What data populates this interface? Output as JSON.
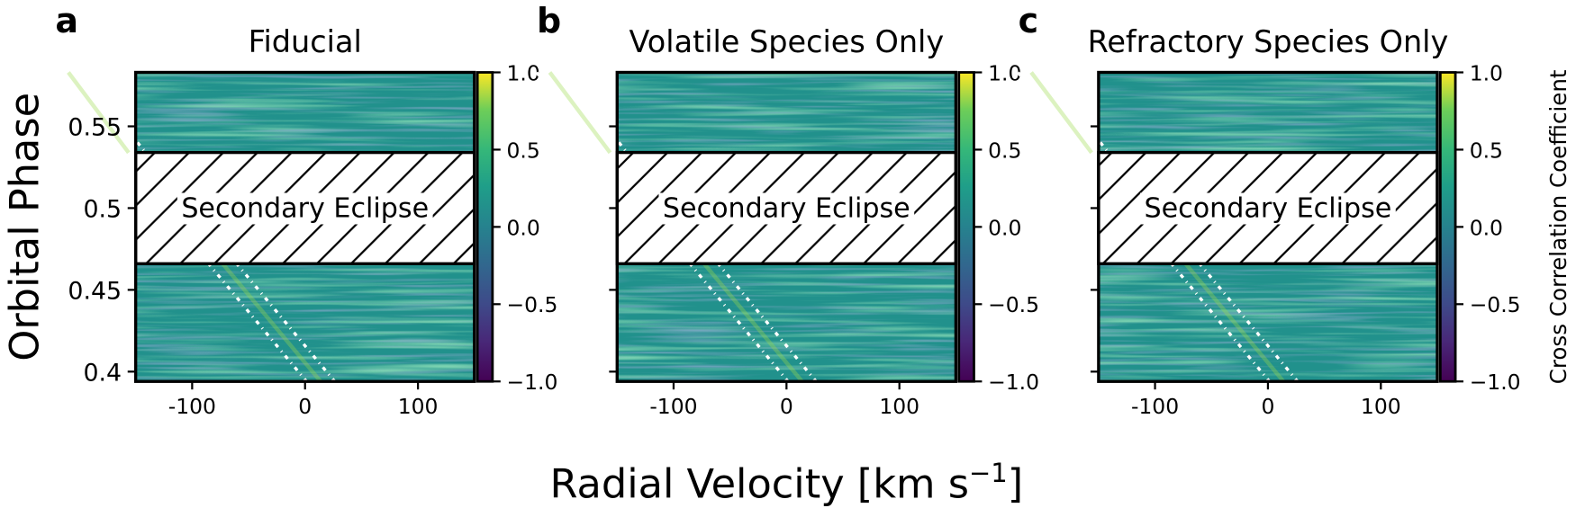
{
  "chart_data": [
    {
      "type": "heatmap",
      "panel_label": "a",
      "title": "Fiducial",
      "xlim": [
        -150,
        150
      ],
      "xticks": [
        {
          "value": -100,
          "label": "-100"
        },
        0,
        100
      ],
      "ylim": [
        0.394,
        0.583
      ],
      "yticks": [
        0.4,
        0.45,
        0.5,
        0.55
      ],
      "shaded_range": [
        0.466,
        0.534
      ],
      "annotation": "Secondary Eclipse",
      "clim": [
        -1,
        1
      ],
      "cticks": [
        {
          "value": -1,
          "label": "−1.0"
        },
        {
          "value": -0.5,
          "label": "−0.5"
        },
        {
          "value": 0,
          "label": "0.0"
        },
        {
          "value": 0.5,
          "label": "0.5"
        },
        {
          "value": 1,
          "label": "1.0"
        }
      ],
      "ylabel": "Orbital Phase"
    },
    {
      "type": "heatmap",
      "panel_label": "b",
      "title": "Volatile Species Only",
      "xlim": [
        -150,
        150
      ],
      "xticks": [
        {
          "value": -100,
          "label": "-100"
        },
        0,
        100
      ],
      "ylim": [
        0.394,
        0.583
      ],
      "yticks": [
        0.4,
        0.45,
        0.5,
        0.55
      ],
      "shaded_range": [
        0.466,
        0.534
      ],
      "annotation": "Secondary Eclipse",
      "clim": [
        -1,
        1
      ],
      "cticks": [
        {
          "value": -1,
          "label": "−1.0"
        },
        {
          "value": -0.5,
          "label": "−0.5"
        },
        {
          "value": 0,
          "label": "0.0"
        },
        {
          "value": 0.5,
          "label": "0.5"
        },
        {
          "value": 1,
          "label": "1.0"
        }
      ],
      "xlabel": "Radial Velocity [km s",
      "xlabel_superscript": "−1",
      "xlabel_end": "]"
    },
    {
      "type": "heatmap",
      "panel_label": "c",
      "title": "Refractory Species Only",
      "xlim": [
        -150,
        150
      ],
      "xticks": [
        {
          "value": -100,
          "label": "-100"
        },
        0,
        100
      ],
      "ylim": [
        0.394,
        0.583
      ],
      "yticks": [
        0.4,
        0.45,
        0.5,
        0.55
      ],
      "shaded_range": [
        0.466,
        0.534
      ],
      "annotation": "Secondary Eclipse",
      "clim": [
        -1,
        1
      ],
      "cticks": [
        {
          "value": -1,
          "label": "−1.0"
        },
        {
          "value": -0.5,
          "label": "−0.5"
        },
        {
          "value": 0,
          "label": "0.0"
        },
        {
          "value": 0.5,
          "label": "0.5"
        },
        {
          "value": 1,
          "label": "1.0"
        }
      ],
      "colorbar_label": "Cross Correlation Coefficient"
    }
  ]
}
